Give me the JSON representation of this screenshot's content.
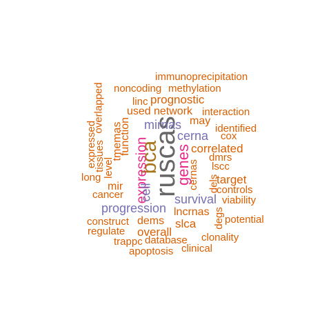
{
  "colors": {
    "orange": "#d95f02",
    "purple": "#7570b3",
    "magenta": "#e7298a",
    "gold": "#a6761d",
    "gray": "#666666"
  },
  "words": {
    "ruscas": "ruscas",
    "bca": "bca",
    "genes": "genes",
    "expression": "expression",
    "mirnas": "mirnas",
    "cerna": "cerna",
    "progression": "progression",
    "survival": "survival",
    "cell": "cell",
    "immunoprecipitation": "immunoprecipitation",
    "noncoding": "noncoding",
    "methylation": "methylation",
    "prognostic": "prognostic",
    "linc": "linc",
    "overlapped": "overlapped",
    "used": "used",
    "network": "network",
    "interaction": "interaction",
    "may": "may",
    "identified": "identified",
    "cox": "cox",
    "expressed": "expressed",
    "tissues": "tissues",
    "tmemas": "tmemas",
    "function": "function",
    "correlated": "correlated",
    "dmrs": "dmrs",
    "target": "target",
    "lscc": "lscc",
    "level": "level",
    "long": "long",
    "mir": "mir",
    "cancer": "cancer",
    "cernas": "cernas",
    "dels": "dels",
    "controls": "controls",
    "viability": "viability",
    "lncrnas": "lncrnas",
    "construct": "construct",
    "dems": "dems",
    "slca": "slca",
    "degs": "degs",
    "potential": "potential",
    "regulate": "regulate",
    "overall": "overall",
    "clonality": "clonality",
    "trappc": "trappc",
    "database": "database",
    "clinical": "clinical",
    "apoptosis": "apoptosis"
  }
}
